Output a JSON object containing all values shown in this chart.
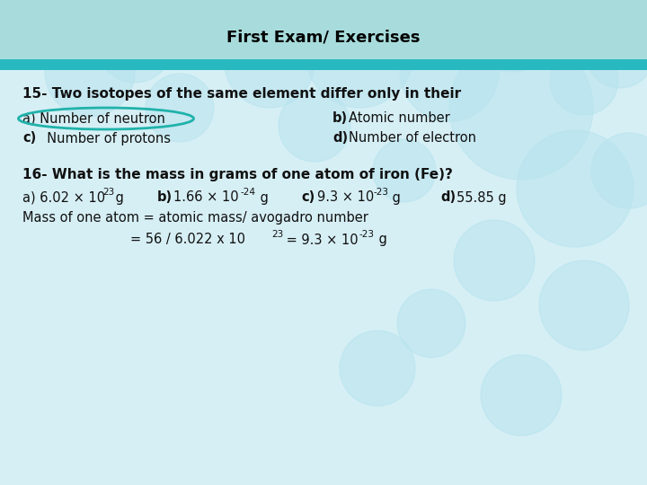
{
  "title": "First Exam/ Exercises",
  "header_top_color": "#A8DEDE",
  "header_stripe_color": "#30B8C0",
  "body_bg": "#D8F0F4",
  "title_color": "#000000",
  "q15_bold": "15- Two isotopes of the same element differ only in their",
  "q15_a": "a) Number of neutron",
  "q15_b_bold": "b)",
  "q15_b_rest": " Atomic number",
  "q15_c_bold": "c)",
  "q15_c_rest": "   Number of protons",
  "q15_d_bold": "d)",
  "q15_d_rest": " Number of electron",
  "q16_bold": "16- What is the mass in grams of one atom of iron (Fe)?",
  "q16_sol1": "Mass of one atom = atomic mass/ avogadro number",
  "answer_circle_color": "#20B2AA",
  "text_color": "#111111"
}
